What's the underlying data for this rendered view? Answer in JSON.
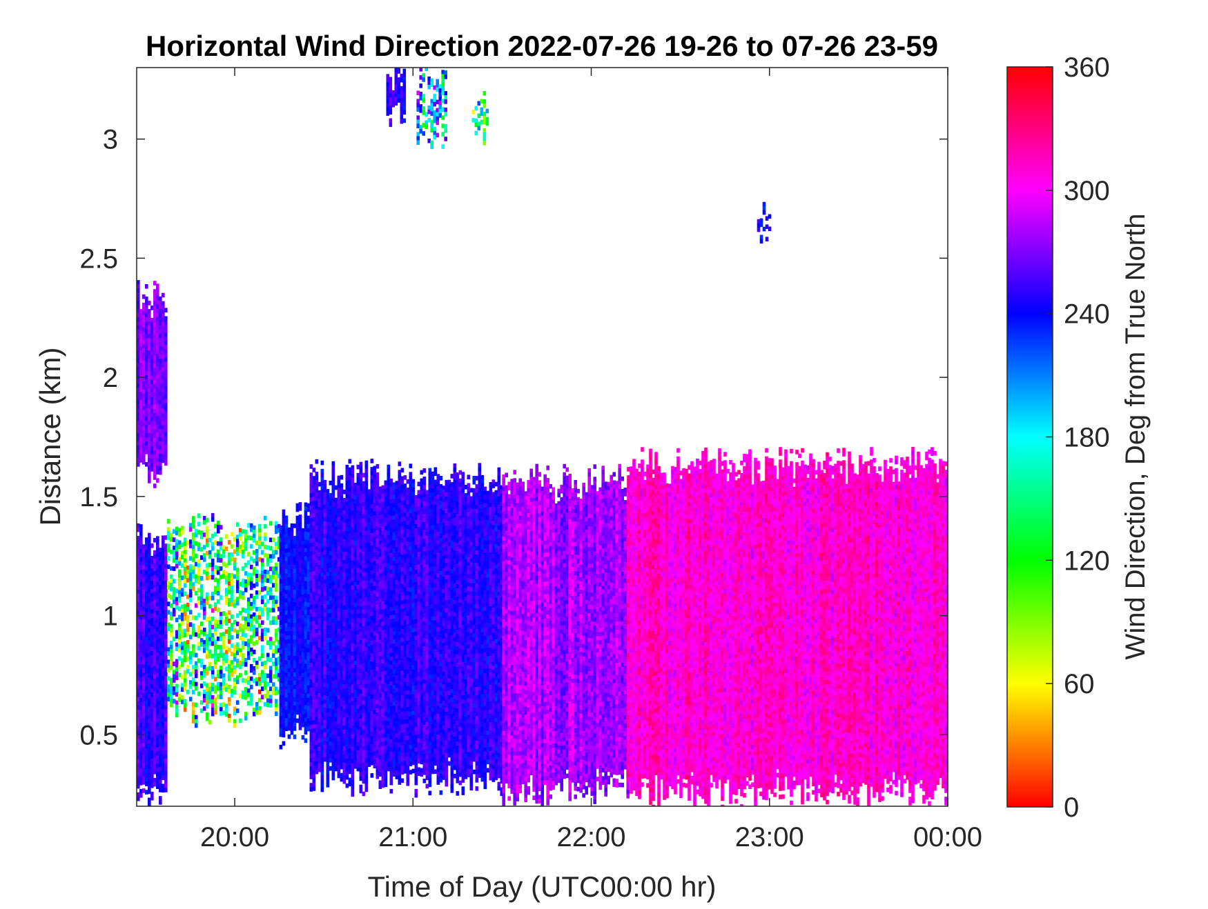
{
  "chart_data": {
    "type": "heatmap",
    "title": "Horizontal Wind Direction 2022-07-26 19-26 to 07-26 23-59",
    "xlabel": "Time of Day (UTC00:00 hr)",
    "ylabel": "Distance (km)",
    "colorbar_label": "Wind Direction, Deg from True North",
    "x_ticks": [
      {
        "value": 20.0,
        "label": "20:00"
      },
      {
        "value": 21.0,
        "label": "21:00"
      },
      {
        "value": 22.0,
        "label": "22:00"
      },
      {
        "value": 23.0,
        "label": "23:00"
      },
      {
        "value": 24.0,
        "label": "00:00"
      }
    ],
    "y_ticks": [
      {
        "value": 0.5,
        "label": "0.5"
      },
      {
        "value": 1.0,
        "label": "1"
      },
      {
        "value": 1.5,
        "label": "1.5"
      },
      {
        "value": 2.0,
        "label": "2"
      },
      {
        "value": 2.5,
        "label": "2.5"
      },
      {
        "value": 3.0,
        "label": "3"
      }
    ],
    "colorbar_ticks": [
      {
        "value": 0,
        "label": "0"
      },
      {
        "value": 60,
        "label": "60"
      },
      {
        "value": 120,
        "label": "120"
      },
      {
        "value": 180,
        "label": "180"
      },
      {
        "value": 240,
        "label": "240"
      },
      {
        "value": 300,
        "label": "300"
      },
      {
        "value": 360,
        "label": "360"
      }
    ],
    "xlim": [
      19.45,
      24.0
    ],
    "ylim": [
      0.2,
      3.3
    ],
    "clim": [
      0,
      360
    ],
    "grid": false,
    "colormap": [
      "#ff0000",
      "#ffff00",
      "#00ff00",
      "#00ffff",
      "#0000ff",
      "#ff00ff",
      "#ff0000"
    ],
    "x_unit": "hours (UTC)",
    "y_unit": "km",
    "value_unit": "degrees from true north",
    "regions": [
      {
        "x": [
          19.45,
          19.62
        ],
        "y_bottom": 0.25,
        "y_top": 1.35,
        "direction": 255,
        "spread": 25
      },
      {
        "x": [
          19.45,
          19.62
        ],
        "y_bottom": 1.6,
        "y_top": 2.35,
        "direction": 270,
        "spread": 25
      },
      {
        "x": [
          19.62,
          20.25
        ],
        "y_bottom": 0.6,
        "y_top": 1.38,
        "direction": 150,
        "spread": 170,
        "sparse": true
      },
      {
        "x": [
          20.25,
          20.42
        ],
        "y_bottom": 0.5,
        "y_top": 1.42,
        "direction": 240,
        "spread": 20
      },
      {
        "x": [
          20.42,
          21.5
        ],
        "y_bottom": 0.3,
        "y_top": 1.6,
        "direction": 250,
        "spread": 25
      },
      {
        "x": [
          21.5,
          22.2
        ],
        "y_bottom": 0.25,
        "y_top": 1.58,
        "direction": 280,
        "spread": 30
      },
      {
        "x": [
          22.2,
          24.0
        ],
        "y_bottom": 0.25,
        "y_top": 1.65,
        "direction": 310,
        "spread": 30
      },
      {
        "x": [
          20.85,
          20.95
        ],
        "y_bottom": 3.1,
        "y_top": 3.3,
        "direction": 250,
        "spread": 25
      },
      {
        "x": [
          21.02,
          21.18
        ],
        "y_bottom": 3.0,
        "y_top": 3.28,
        "direction": 200,
        "spread": 120,
        "sparse": true
      },
      {
        "x": [
          21.33,
          21.42
        ],
        "y_bottom": 3.05,
        "y_top": 3.15,
        "direction": 150,
        "spread": 120,
        "sparse": true
      },
      {
        "x": [
          22.93,
          23.0
        ],
        "y_bottom": 2.6,
        "y_top": 2.72,
        "direction": 240,
        "spread": 20,
        "sparse": true
      }
    ]
  }
}
